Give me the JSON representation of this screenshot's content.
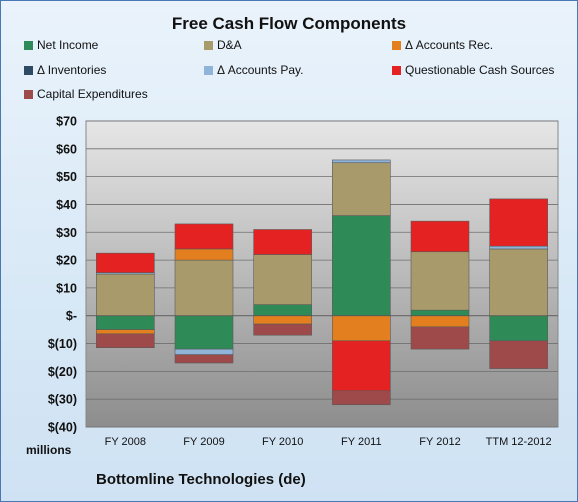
{
  "chart_data": {
    "type": "bar",
    "stacked": true,
    "title": "Free Cash Flow Components",
    "categories": [
      "FY 2008",
      "FY 2009",
      "FY 2010",
      "FY 2011",
      "FY 2012",
      "TTM 12-2012"
    ],
    "y_tick_labels": [
      "$70",
      "$60",
      "$50",
      "$40",
      "$30",
      "$20",
      "$10",
      "$-",
      "$(10)",
      "$(20)",
      "$(30)",
      "$(40)"
    ],
    "ylim": [
      -40,
      70
    ],
    "y_step": 10,
    "units_label": "millions",
    "company_label": "Bottomline Technologies (de)",
    "legend_placement": "top",
    "grid": true,
    "series": [
      {
        "name": "Net Income",
        "color": "#2e8b57",
        "values": [
          -5,
          -12,
          4,
          36,
          2,
          -9
        ]
      },
      {
        "name": "D&A",
        "color": "#a89a6a",
        "values": [
          15,
          20,
          18,
          19,
          21,
          24
        ]
      },
      {
        "name": "Δ Accounts Rec.",
        "color": "#e37f1e",
        "values": [
          -1.5,
          4,
          -3,
          -9,
          -4,
          0
        ]
      },
      {
        "name": "Δ Inventories",
        "color": "#2e4b63",
        "values": [
          0,
          0,
          0,
          0,
          0,
          0
        ]
      },
      {
        "name": "Δ Accounts Pay.",
        "color": "#8fb3d9",
        "values": [
          0.5,
          -2,
          0,
          1,
          0,
          1
        ]
      },
      {
        "name": "Questionable Cash Sources",
        "color": "#e52222",
        "values": [
          7,
          9,
          9,
          -18,
          11,
          17
        ]
      },
      {
        "name": "Capital Expenditures",
        "color": "#9e4a4a",
        "values": [
          -5,
          -3,
          -4,
          -5,
          -8,
          -10
        ]
      }
    ]
  }
}
